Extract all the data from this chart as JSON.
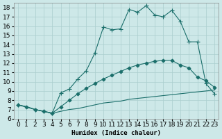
{
  "xlabel": "Humidex (Indice chaleur)",
  "xlim": [
    -0.5,
    23.5
  ],
  "ylim": [
    6,
    18.5
  ],
  "yticks": [
    6,
    7,
    8,
    9,
    10,
    11,
    12,
    13,
    14,
    15,
    16,
    17,
    18
  ],
  "xticks": [
    0,
    1,
    2,
    3,
    4,
    5,
    6,
    7,
    8,
    9,
    10,
    11,
    12,
    13,
    14,
    15,
    16,
    17,
    18,
    19,
    20,
    21,
    22,
    23
  ],
  "bg_color": "#cde8e8",
  "line_color": "#1a6e6a",
  "lines": [
    {
      "x": [
        0,
        1,
        2,
        3,
        4,
        5,
        6,
        7,
        8,
        9,
        10,
        11,
        12,
        13,
        14,
        15,
        16,
        17,
        18,
        19,
        20,
        21,
        22,
        23
      ],
      "y": [
        7.5,
        7.3,
        7.0,
        6.8,
        6.6,
        6.8,
        7.0,
        7.1,
        7.3,
        7.5,
        7.7,
        7.8,
        7.9,
        8.1,
        8.2,
        8.3,
        8.4,
        8.5,
        8.6,
        8.7,
        8.8,
        8.9,
        9.0,
        9.1
      ],
      "marker": null,
      "linestyle": "-",
      "linewidth": 0.8
    },
    {
      "x": [
        0,
        1,
        2,
        3,
        4,
        5,
        6,
        7,
        8,
        9,
        10,
        11,
        12,
        13,
        14,
        15,
        16,
        17,
        18,
        19,
        20,
        21,
        22,
        23
      ],
      "y": [
        7.5,
        7.3,
        7.0,
        6.8,
        6.6,
        7.3,
        8.0,
        8.7,
        9.3,
        9.8,
        10.3,
        10.7,
        11.1,
        11.5,
        11.8,
        12.0,
        12.2,
        12.3,
        12.3,
        11.8,
        11.5,
        10.5,
        10.1,
        9.4
      ],
      "marker": "D",
      "markersize": 2.5,
      "linestyle": "-",
      "linewidth": 0.8
    },
    {
      "x": [
        0,
        2,
        3,
        4,
        5,
        6,
        7,
        8,
        9,
        10,
        11,
        12,
        13,
        14,
        15,
        16,
        17,
        18,
        19,
        20,
        21,
        22,
        23
      ],
      "y": [
        7.5,
        7.0,
        6.8,
        6.6,
        8.8,
        9.2,
        10.3,
        11.2,
        13.1,
        15.9,
        15.6,
        15.7,
        17.8,
        17.5,
        18.2,
        17.2,
        17.0,
        17.7,
        16.5,
        14.3,
        14.3,
        9.8,
        8.7
      ],
      "marker": "+",
      "markersize": 4,
      "linestyle": "-",
      "linewidth": 0.8
    }
  ],
  "grid_color": "#aacece",
  "tick_fontsize": 6.5
}
